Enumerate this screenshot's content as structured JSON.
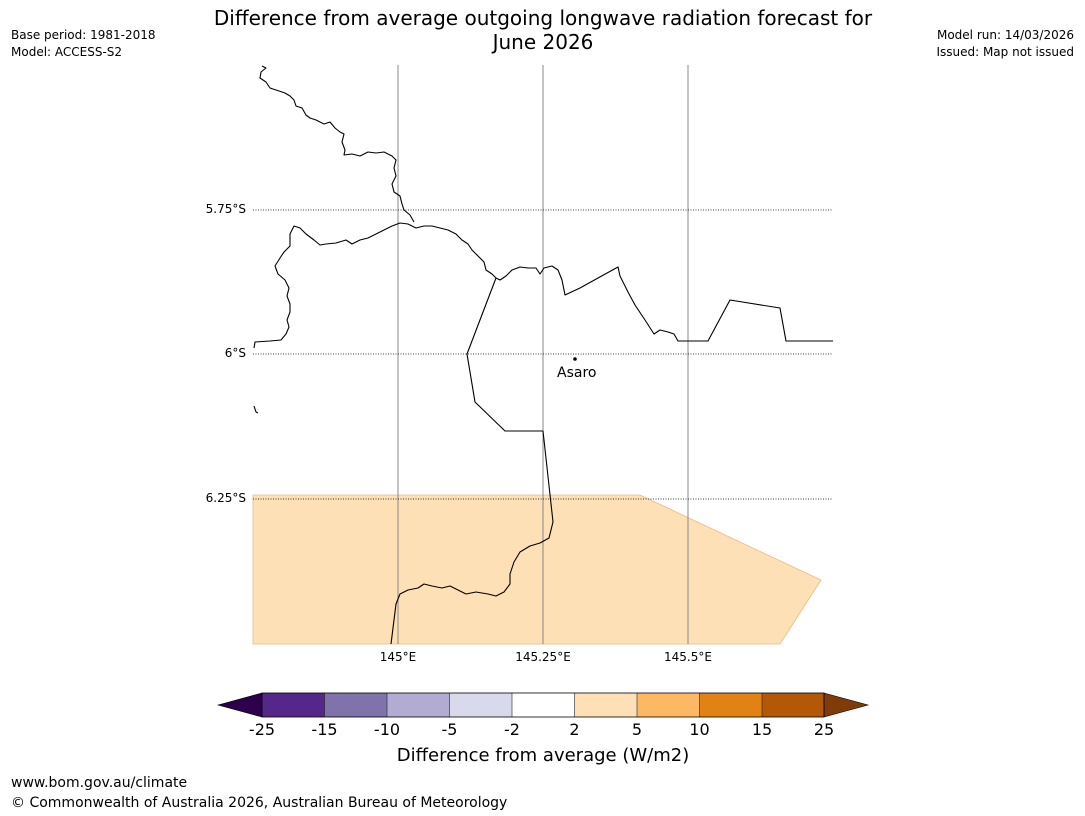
{
  "title_line1": "Difference from average outgoing longwave radiation forecast for",
  "title_line2": "June 2026",
  "meta_left": {
    "base_period": "Base period: 1981-2018",
    "model": "Model: ACCESS-S2"
  },
  "meta_right": {
    "model_run": "Model run: 14/03/2026",
    "issued": "Issued: Map not issued"
  },
  "map": {
    "lat_labels": [
      "5.75°S",
      "6°S",
      "6.25°S"
    ],
    "lon_labels": [
      "145°E",
      "145.25°E",
      "145.5°E"
    ],
    "place": {
      "name": "Asaro"
    },
    "fill_category": "2 to 5 W/m2",
    "colors": {
      "fill": "#fde0b6",
      "fill_edge": "#e9b98a",
      "border": "#000000",
      "grid": "#888888"
    }
  },
  "colorbar": {
    "ticks": [
      "-25",
      "-15",
      "-10",
      "-5",
      "-2",
      "2",
      "5",
      "10",
      "15",
      "25"
    ],
    "colors": {
      "under": "#2d004b",
      "bins": [
        "#542788",
        "#8073ac",
        "#b2abd2",
        "#d8daeb",
        "#ffffff",
        "#fee0b6",
        "#fdb863",
        "#e08214",
        "#b35806"
      ],
      "over": "#7f3b08"
    },
    "label": "Difference from average (W/m2)"
  },
  "footer": {
    "url": "www.bom.gov.au/climate",
    "copyright": "© Commonwealth of Australia 2026, Australian Bureau of Meteorology"
  }
}
